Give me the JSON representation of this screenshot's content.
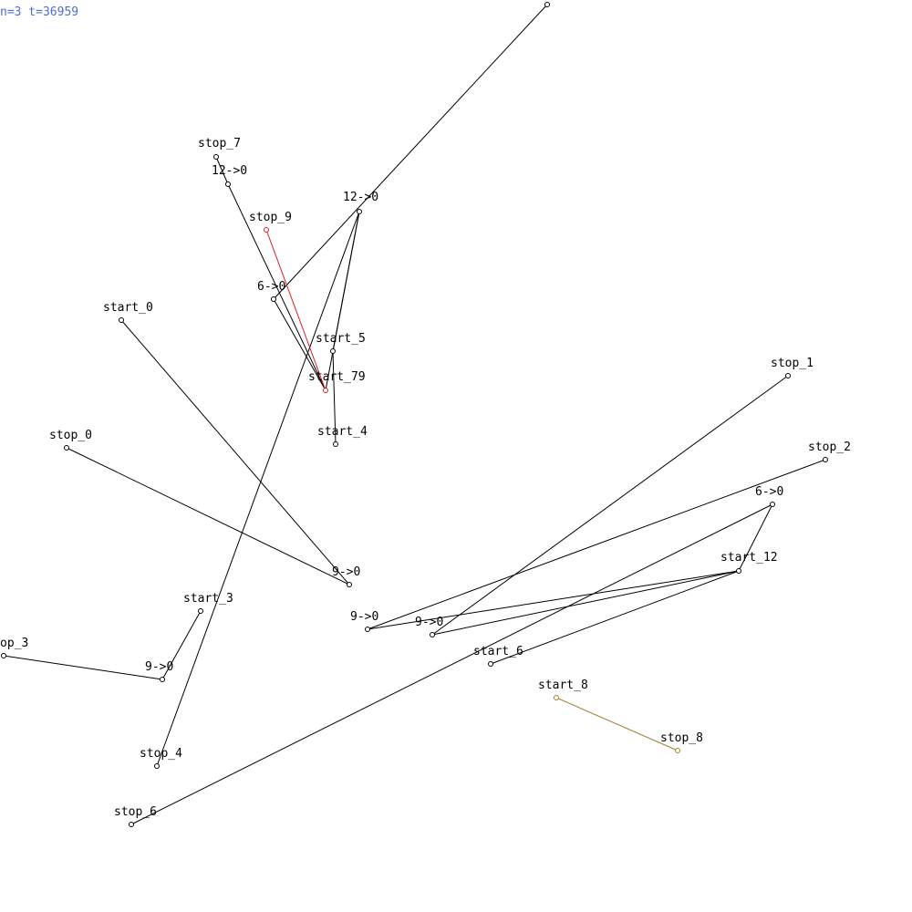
{
  "status": "n=3 t=36959",
  "colors": {
    "edge": "#000000",
    "route_red": "#e02020",
    "route_olive": "#a08030",
    "status": "#4a6fd0"
  },
  "labels": {
    "stop_7": "stop_7",
    "l12a": "12->0",
    "l12b": "12->0",
    "stop_9": "stop_9",
    "l6a": "6->0",
    "start_0": "start_0",
    "start_5": "start_5",
    "start_79": "start_79",
    "start_4": "start_4",
    "stop_0": "stop_0",
    "stop_1": "stop_1",
    "stop_2": "stop_2",
    "l6b": "6->0",
    "start_12": "start_12",
    "l9a": "9->0",
    "start_3": "start_3",
    "l9b": "9->0",
    "l9c": "9->0",
    "stop_3": "op_3",
    "l9d": "9->0",
    "start_6": "start_6",
    "start_8": "start_8",
    "stop_8": "stop_8",
    "stop_4": "stop_4",
    "stop_6": "stop_6"
  }
}
